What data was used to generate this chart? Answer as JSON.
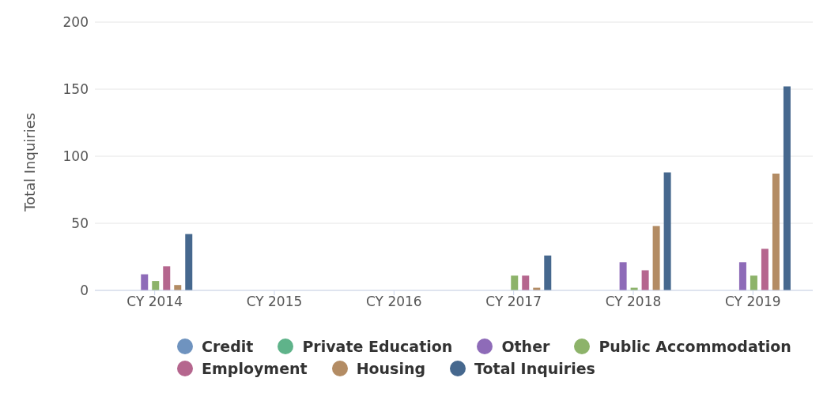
{
  "chart_data": {
    "type": "bar",
    "ylabel": "Total Inquiries",
    "categories": [
      "CY 2014",
      "CY 2015",
      "CY 2016",
      "CY 2017",
      "CY 2018",
      "CY 2019"
    ],
    "series": [
      {
        "name": "Credit",
        "color": "#6f93bf",
        "values": [
          null,
          null,
          null,
          null,
          null,
          null
        ]
      },
      {
        "name": "Private Education",
        "color": "#5fb38a",
        "values": [
          null,
          null,
          null,
          null,
          null,
          null
        ]
      },
      {
        "name": "Other",
        "color": "#8e6bb8",
        "values": [
          12,
          null,
          null,
          null,
          21,
          21
        ]
      },
      {
        "name": "Public Accommodation",
        "color": "#8db36a",
        "values": [
          7,
          null,
          null,
          11,
          2,
          11
        ]
      },
      {
        "name": "Employment",
        "color": "#b5668e",
        "values": [
          18,
          null,
          null,
          11,
          15,
          31
        ]
      },
      {
        "name": "Housing",
        "color": "#b38c64",
        "values": [
          4,
          null,
          null,
          2,
          48,
          87
        ]
      },
      {
        "name": "Total Inquiries",
        "color": "#46688e",
        "values": [
          42,
          null,
          null,
          26,
          88,
          152
        ]
      }
    ],
    "ylim": [
      0,
      200
    ],
    "yticks": [
      0,
      50,
      100,
      150,
      200
    ],
    "grid": "y",
    "legend": "bottom"
  }
}
